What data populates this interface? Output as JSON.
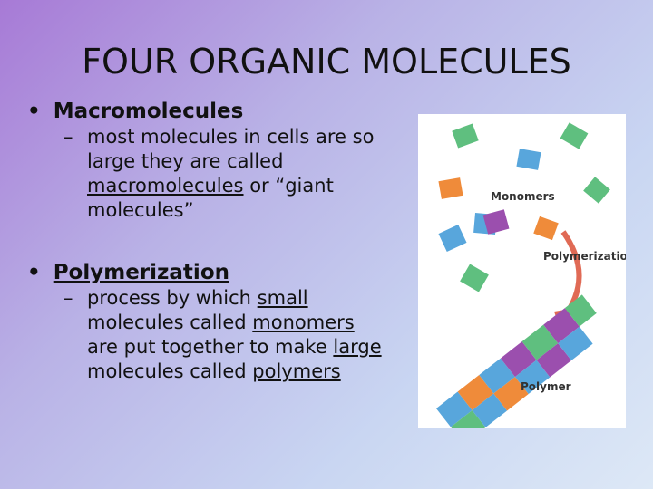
{
  "title": "FOUR ORGANIC MOLECULES",
  "bullet_mark": "•",
  "sub_mark": "–",
  "bullets": [
    {
      "heading": "Macromolecules",
      "heading_underline": false,
      "sub": [
        {
          "text": "most molecules in cells are so large they are called ",
          "underline": false
        },
        {
          "text": "macromolecules",
          "underline": true
        },
        {
          "text": " or “giant molecules”",
          "underline": false
        }
      ]
    },
    {
      "heading": "Polymerization",
      "heading_underline": true,
      "sub": [
        {
          "text": "process by which ",
          "underline": false
        },
        {
          "text": "small",
          "underline": true
        },
        {
          "text": " molecules called ",
          "underline": false
        },
        {
          "text": "monomers",
          "underline": true
        },
        {
          "text": " are put together to make ",
          "underline": false
        },
        {
          "text": "large",
          "underline": true
        },
        {
          "text": " molecules called ",
          "underline": false
        },
        {
          "text": "polymers",
          "underline": true
        }
      ]
    }
  ],
  "figure": {
    "monomers_label": "Monomers",
    "arrow_label": "Polymerization",
    "polymer_label": "Polymer"
  }
}
